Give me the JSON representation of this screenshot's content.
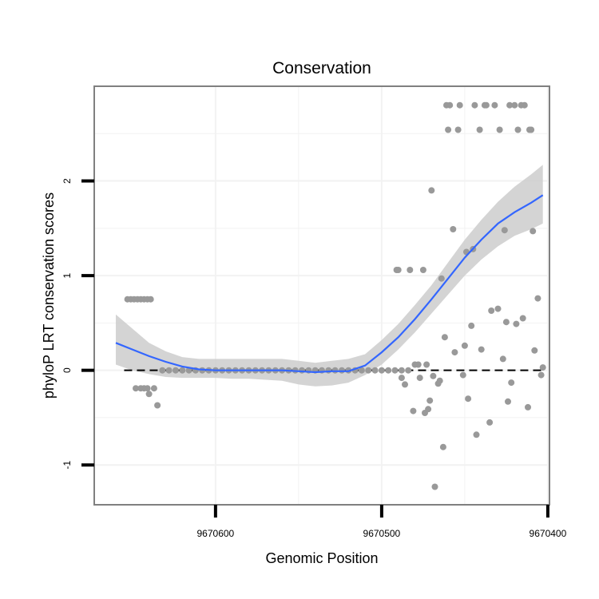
{
  "chart_data": {
    "type": "scatter",
    "title": "Conservation",
    "xlabel": "Genomic Position",
    "ylabel": "phyloP LRT conservation scores",
    "x_reversed": true,
    "xlim": [
      9670673,
      9670399
    ],
    "ylim": [
      -1.42,
      3.0
    ],
    "x_ticks": [
      9670600,
      9670500,
      9670400
    ],
    "x_tick_labels": [
      "9670600",
      "9670500",
      "9670400"
    ],
    "y_ticks": [
      -1,
      0,
      1,
      2
    ],
    "y_tick_labels": [
      "-1",
      "0",
      "1",
      "2"
    ],
    "reference_line": {
      "y": 0,
      "style": "dashed",
      "color": "#000000"
    },
    "colors": {
      "points": "#999999",
      "smooth_line": "#3366ff",
      "confidence_band": "#cccccc",
      "panel_border": "#808080",
      "grid": "#f2f2f2"
    },
    "series": [
      {
        "name": "points",
        "kind": "scatter",
        "x": [
          9670653,
          9670651,
          9670649,
          9670647,
          9670645,
          9670643,
          9670641,
          9670639,
          9670648,
          9670645,
          9670643,
          9670641,
          9670640,
          9670637,
          9670635,
          9670632,
          9670628,
          9670624,
          9670620,
          9670616,
          9670612,
          9670608,
          9670604,
          9670600,
          9670596,
          9670592,
          9670588,
          9670584,
          9670580,
          9670576,
          9670572,
          9670568,
          9670564,
          9670560,
          9670556,
          9670552,
          9670548,
          9670544,
          9670540,
          9670536,
          9670532,
          9670528,
          9670524,
          9670520,
          9670516,
          9670512,
          9670508,
          9670504,
          9670500,
          9670496,
          9670492,
          9670488,
          9670484,
          9670491,
          9670490,
          9670488,
          9670486,
          9670483,
          9670481,
          9670480,
          9670478,
          9670477,
          9670475,
          9670474,
          9670473,
          9670472,
          9670471,
          9670470,
          9670469,
          9670468,
          9670466,
          9670465,
          9670464,
          9670463,
          9670462,
          9670461,
          9670460,
          9670459,
          9670457,
          9670456,
          9670454,
          9670453,
          9670451,
          9670450,
          9670449,
          9670448,
          9670446,
          9670445,
          9670444,
          9670443,
          9670441,
          9670440,
          9670438,
          9670437,
          9670435,
          9670434,
          9670432,
          9670430,
          9670429,
          9670427,
          9670426,
          9670425,
          9670424,
          9670423,
          9670422,
          9670420,
          9670419,
          9670418,
          9670416,
          9670415,
          9670414,
          9670412,
          9670411,
          9670410,
          9670409,
          9670408,
          9670406,
          9670404,
          9670403
        ],
        "y": [
          0.75,
          0.75,
          0.75,
          0.75,
          0.75,
          0.75,
          0.75,
          0.75,
          -0.19,
          -0.19,
          -0.19,
          -0.19,
          -0.25,
          -0.19,
          -0.37,
          0,
          0,
          0,
          0,
          0,
          0,
          0,
          0,
          0,
          0,
          0,
          0,
          0,
          0,
          0,
          0,
          0,
          0,
          0,
          0,
          0,
          0,
          0,
          0,
          0,
          0,
          0,
          0,
          0,
          0,
          0,
          0,
          0,
          0,
          0,
          0,
          0,
          0,
          1.06,
          1.06,
          -0.08,
          -0.15,
          1.06,
          -0.43,
          0.06,
          0.06,
          -0.08,
          1.06,
          -0.45,
          0.06,
          -0.41,
          -0.32,
          1.9,
          -0.06,
          -1.23,
          -0.14,
          -0.11,
          0.97,
          -0.81,
          0.35,
          2.8,
          2.54,
          2.8,
          1.49,
          0.19,
          2.54,
          2.8,
          -0.05,
          0.26,
          1.25,
          -0.3,
          0.47,
          1.28,
          2.8,
          -0.68,
          2.54,
          0.22,
          2.8,
          2.8,
          -0.55,
          0.63,
          2.8,
          0.65,
          2.54,
          0.12,
          1.48,
          0.51,
          -0.33,
          2.8,
          -0.13,
          2.8,
          0.49,
          2.54,
          2.8,
          0.55,
          2.8,
          -0.39,
          2.54,
          2.54,
          1.47,
          0.21,
          0.76,
          -0.05,
          0.03
        ]
      },
      {
        "name": "smooth",
        "kind": "line",
        "x": [
          9670660,
          9670650,
          9670640,
          9670630,
          9670620,
          9670610,
          9670600,
          9670590,
          9670580,
          9670570,
          9670560,
          9670550,
          9670540,
          9670530,
          9670520,
          9670510,
          9670500,
          9670490,
          9670480,
          9670470,
          9670460,
          9670450,
          9670440,
          9670430,
          9670420,
          9670410,
          9670403
        ],
        "y": [
          0.29,
          0.22,
          0.15,
          0.09,
          0.04,
          0.01,
          0.0,
          0.0,
          0.0,
          0.0,
          0.0,
          -0.01,
          -0.02,
          -0.01,
          -0.01,
          0.05,
          0.19,
          0.35,
          0.54,
          0.75,
          0.97,
          1.19,
          1.38,
          1.55,
          1.67,
          1.77,
          1.85
        ],
        "lower": [
          0.06,
          0.0,
          -0.04,
          -0.07,
          -0.08,
          -0.08,
          -0.08,
          -0.09,
          -0.09,
          -0.1,
          -0.11,
          -0.15,
          -0.17,
          -0.16,
          -0.13,
          -0.05,
          0.06,
          0.22,
          0.4,
          0.6,
          0.8,
          1.0,
          1.17,
          1.31,
          1.42,
          1.49,
          1.55
        ],
        "upper": [
          0.59,
          0.44,
          0.29,
          0.2,
          0.14,
          0.12,
          0.12,
          0.12,
          0.12,
          0.12,
          0.12,
          0.1,
          0.08,
          0.1,
          0.12,
          0.17,
          0.32,
          0.49,
          0.69,
          0.9,
          1.14,
          1.38,
          1.59,
          1.78,
          1.94,
          2.07,
          2.17
        ]
      }
    ]
  }
}
